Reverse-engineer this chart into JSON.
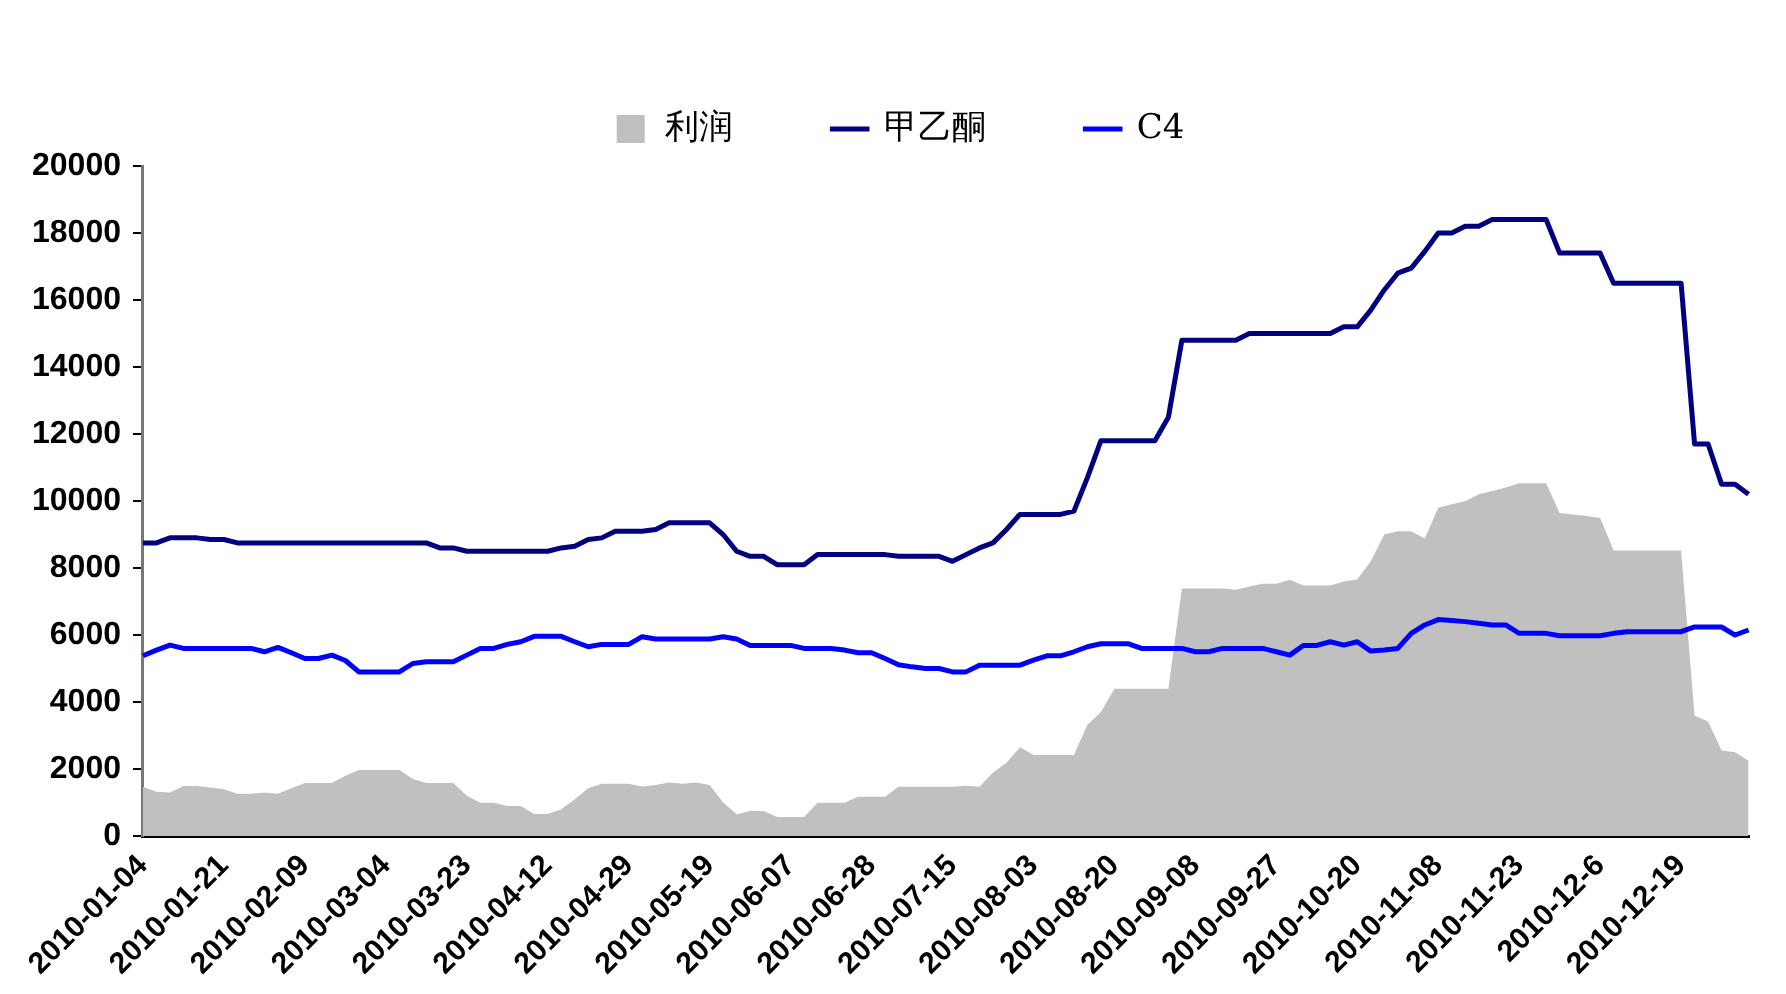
{
  "chart_data": {
    "type": "line",
    "categories": [
      "2010-01-04",
      null,
      null,
      null,
      null,
      null,
      "2010-01-21",
      null,
      null,
      null,
      null,
      null,
      "2010-02-09",
      null,
      null,
      null,
      null,
      null,
      "2010-03-04",
      null,
      null,
      null,
      null,
      null,
      "2010-03-23",
      null,
      null,
      null,
      null,
      null,
      "2010-04-12",
      null,
      null,
      null,
      null,
      null,
      "2010-04-29",
      null,
      null,
      null,
      null,
      null,
      "2010-05-19",
      null,
      null,
      null,
      null,
      null,
      "2010-06-07",
      null,
      null,
      null,
      null,
      null,
      "2010-06-28",
      null,
      null,
      null,
      null,
      null,
      "2010-07-15",
      null,
      null,
      null,
      null,
      null,
      "2010-08-03",
      null,
      null,
      null,
      null,
      null,
      "2010-08-20",
      null,
      null,
      null,
      null,
      null,
      "2010-09-08",
      null,
      null,
      null,
      null,
      null,
      "2010-09-27",
      null,
      null,
      null,
      null,
      null,
      "2010-10-20",
      null,
      null,
      null,
      null,
      null,
      "2010-11-08",
      null,
      null,
      null,
      null,
      null,
      "2010-11-23",
      null,
      null,
      null,
      null,
      null,
      "2010-12-6",
      null,
      null,
      null,
      null,
      null,
      "2010-12-19",
      null,
      null,
      null,
      null,
      null
    ],
    "ylim": [
      0,
      20000
    ],
    "yticks": [
      0,
      2000,
      4000,
      6000,
      8000,
      10000,
      12000,
      14000,
      16000,
      18000,
      20000
    ],
    "grid": false,
    "legend": "top",
    "series": [
      {
        "name": "利润",
        "type": "area",
        "color": "#c0c0c0",
        "values": [
          1470,
          1320,
          1300,
          1490,
          1490,
          1450,
          1400,
          1260,
          1260,
          1300,
          1260,
          1430,
          1580,
          1580,
          1580,
          1800,
          1970,
          1970,
          1970,
          1970,
          1700,
          1580,
          1580,
          1580,
          1200,
          990,
          990,
          900,
          900,
          660,
          660,
          800,
          1100,
          1430,
          1560,
          1560,
          1560,
          1480,
          1520,
          1600,
          1560,
          1600,
          1520,
          1000,
          650,
          750,
          750,
          570,
          570,
          570,
          990,
          990,
          990,
          1170,
          1170,
          1170,
          1470,
          1470,
          1470,
          1470,
          1470,
          1500,
          1470,
          1900,
          2190,
          2650,
          2420,
          2420,
          2420,
          2420,
          3320,
          3700,
          4400,
          4400,
          4400,
          4400,
          4400,
          7390,
          7390,
          7390,
          7390,
          7350,
          7450,
          7530,
          7530,
          7650,
          7480,
          7480,
          7480,
          7600,
          7660,
          8200,
          9000,
          9100,
          9100,
          8880,
          9800,
          9900,
          9990,
          10200,
          10300,
          10400,
          10530,
          10530,
          10530,
          9640,
          9600,
          9550,
          9490,
          8520,
          8520,
          8520,
          8520,
          8520,
          8520,
          3600,
          3420,
          2550,
          2500,
          2250
        ]
      },
      {
        "name": "甲乙酮",
        "color": "#000080",
        "values": [
          8750,
          8750,
          8900,
          8900,
          8900,
          8850,
          8850,
          8750,
          8750,
          8750,
          8750,
          8750,
          8750,
          8750,
          8750,
          8750,
          8750,
          8750,
          8750,
          8750,
          8750,
          8750,
          8600,
          8600,
          8500,
          8500,
          8500,
          8500,
          8500,
          8500,
          8500,
          8600,
          8650,
          8850,
          8900,
          9100,
          9100,
          9100,
          9150,
          9350,
          9350,
          9350,
          9350,
          9000,
          8500,
          8350,
          8350,
          8100,
          8100,
          8100,
          8400,
          8400,
          8400,
          8400,
          8400,
          8400,
          8350,
          8350,
          8350,
          8350,
          8200,
          8400,
          8600,
          8750,
          9150,
          9600,
          9600,
          9600,
          9600,
          9700,
          10700,
          11800,
          11800,
          11800,
          11800,
          11800,
          12500,
          14800,
          14800,
          14800,
          14800,
          14800,
          15000,
          15000,
          15000,
          15000,
          15000,
          15000,
          15000,
          15200,
          15200,
          15700,
          16300,
          16800,
          16950,
          17450,
          18000,
          18000,
          18200,
          18200,
          18400,
          18400,
          18400,
          18400,
          18400,
          17400,
          17400,
          17400,
          17400,
          16500,
          16500,
          16500,
          16500,
          16500,
          16500,
          11700,
          11700,
          10500,
          10500,
          10200
        ]
      },
      {
        "name": "C4",
        "color": "#0000ff",
        "values": [
          5380,
          5550,
          5700,
          5600,
          5600,
          5600,
          5600,
          5600,
          5600,
          5500,
          5630,
          5470,
          5300,
          5300,
          5400,
          5240,
          4900,
          4900,
          4900,
          4900,
          5150,
          5200,
          5200,
          5200,
          5400,
          5600,
          5600,
          5720,
          5800,
          5960,
          5960,
          5960,
          5800,
          5650,
          5720,
          5720,
          5720,
          5950,
          5880,
          5880,
          5880,
          5880,
          5880,
          5950,
          5880,
          5690,
          5690,
          5690,
          5690,
          5600,
          5600,
          5600,
          5550,
          5470,
          5470,
          5300,
          5110,
          5050,
          5000,
          5000,
          4900,
          4900,
          5100,
          5100,
          5100,
          5100,
          5250,
          5380,
          5380,
          5500,
          5650,
          5740,
          5740,
          5740,
          5600,
          5600,
          5600,
          5600,
          5500,
          5500,
          5600,
          5600,
          5600,
          5600,
          5500,
          5400,
          5690,
          5690,
          5800,
          5700,
          5800,
          5520,
          5550,
          5600,
          6050,
          6300,
          6460,
          6430,
          6400,
          6350,
          6300,
          6300,
          6050,
          6050,
          6050,
          5980,
          5980,
          5980,
          5980,
          6050,
          6100,
          6100,
          6100,
          6100,
          6100,
          6240,
          6240,
          6240,
          6000,
          6150
        ]
      }
    ]
  }
}
